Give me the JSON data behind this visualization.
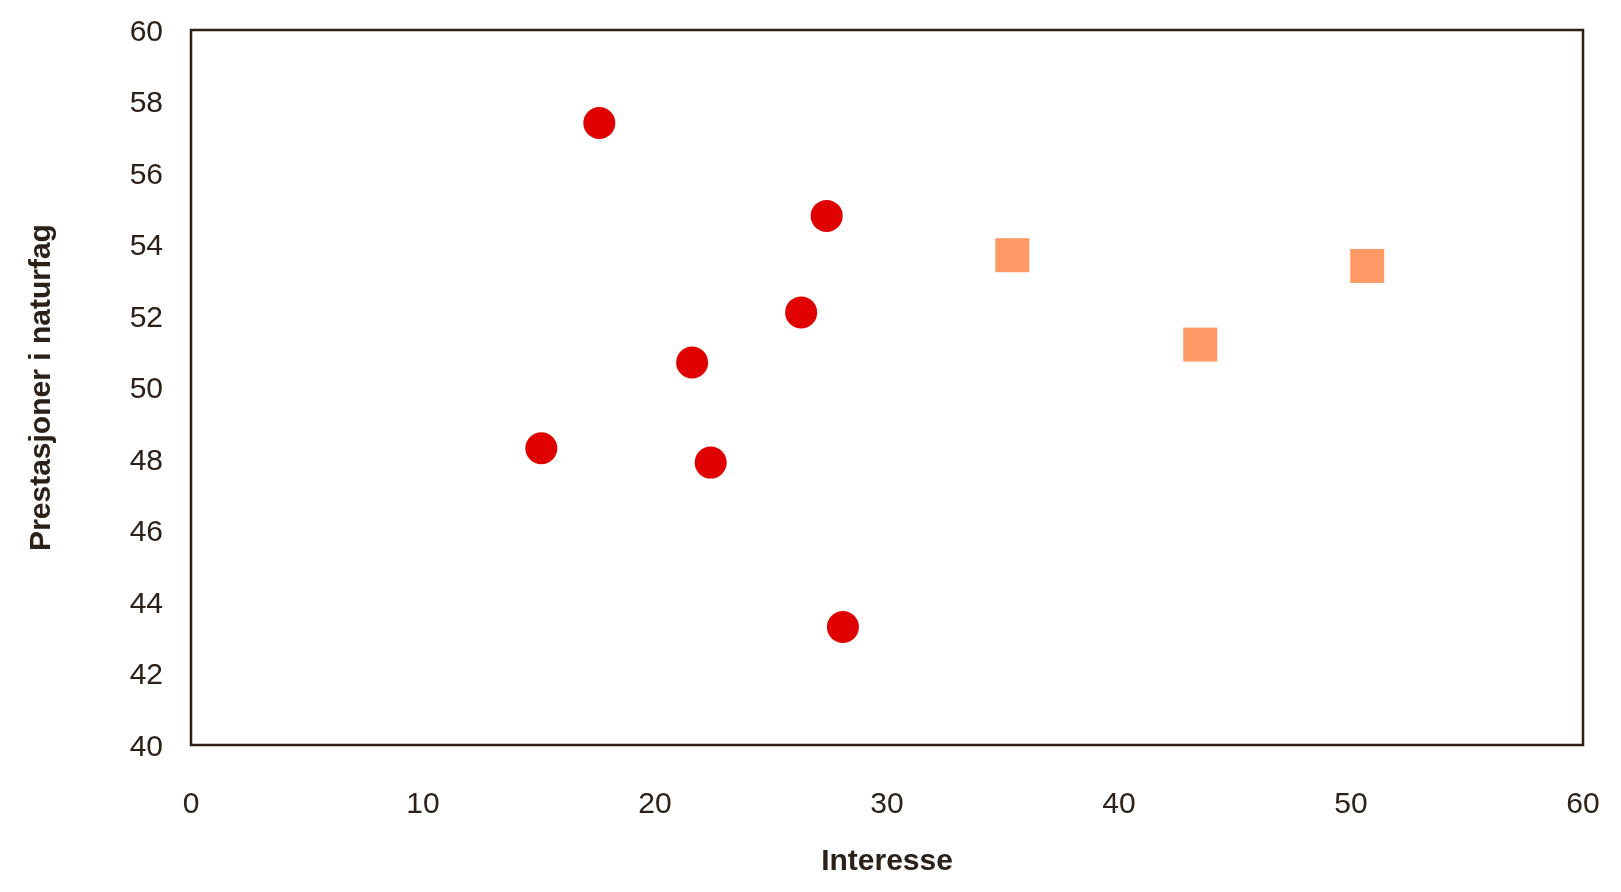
{
  "chart_data": {
    "type": "scatter",
    "xlabel": "Interesse",
    "ylabel": "Prestasjoner i naturfag",
    "xlim": [
      0,
      60
    ],
    "xticks": [
      0,
      10,
      20,
      30,
      40,
      50,
      60
    ],
    "ylim": [
      40,
      60
    ],
    "yticks": [
      40,
      42,
      44,
      46,
      48,
      50,
      52,
      54,
      56,
      58,
      60
    ],
    "grid": false,
    "series": [
      {
        "color": "#e00000",
        "marker": "circle",
        "x": [
          17.6,
          27.4,
          26.3,
          21.6,
          15.1,
          22.4,
          28.1
        ],
        "values": [
          57.4,
          54.8,
          52.1,
          50.7,
          48.3,
          47.9,
          43.3
        ]
      },
      {
        "color": "#ff9966",
        "marker": "square",
        "x": [
          35.4,
          43.5,
          50.7
        ],
        "values": [
          53.7,
          51.2,
          53.4
        ]
      }
    ]
  }
}
